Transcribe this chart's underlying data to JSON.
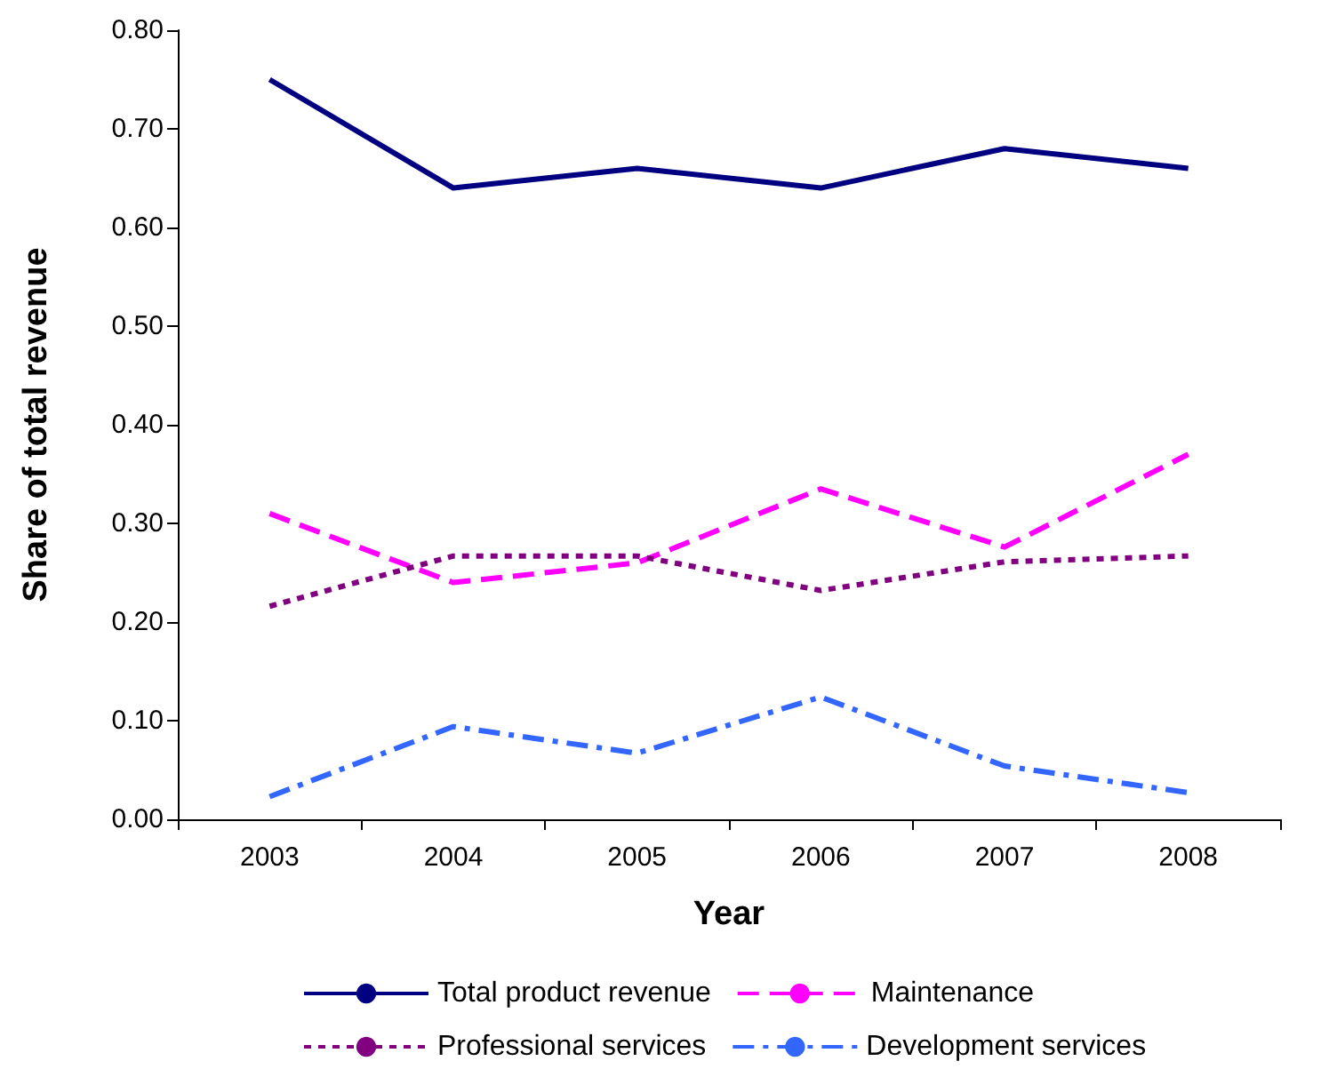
{
  "chart_data": {
    "type": "line",
    "xlabel": "Year",
    "ylabel": "Share of total revenue",
    "categories": [
      "2003",
      "2004",
      "2005",
      "2006",
      "2007",
      "2008"
    ],
    "series": [
      {
        "name": "Total product revenue",
        "color": "#000080",
        "line_style": "solid",
        "values": [
          0.75,
          0.64,
          0.66,
          0.64,
          0.68,
          0.66
        ]
      },
      {
        "name": "Maintenance",
        "color": "#ff00ff",
        "line_style": "dashed",
        "values": [
          0.31,
          0.24,
          0.26,
          0.335,
          0.276,
          0.37
        ]
      },
      {
        "name": "Professional services",
        "color": "#800080",
        "line_style": "dotted",
        "values": [
          0.216,
          0.267,
          0.267,
          0.232,
          0.261,
          0.267
        ]
      },
      {
        "name": "Development services",
        "color": "#3366ff",
        "line_style": "dashdot",
        "values": [
          0.023,
          0.094,
          0.067,
          0.124,
          0.054,
          0.027
        ]
      }
    ],
    "ylim": [
      0,
      0.8
    ],
    "yticks": [
      {
        "value": 0,
        "label": "0.00"
      },
      {
        "value": 0.1,
        "label": "0.10"
      },
      {
        "value": 0.2,
        "label": "0.20"
      },
      {
        "value": 0.3,
        "label": "0.30"
      },
      {
        "value": 0.4,
        "label": "0.40"
      },
      {
        "value": 0.5,
        "label": "0.50"
      },
      {
        "value": 0.6,
        "label": "0.60"
      },
      {
        "value": 0.7,
        "label": "0.70"
      },
      {
        "value": 0.8,
        "label": "0.80"
      }
    ],
    "grid": false,
    "legend": "bottom",
    "marker": "none"
  }
}
